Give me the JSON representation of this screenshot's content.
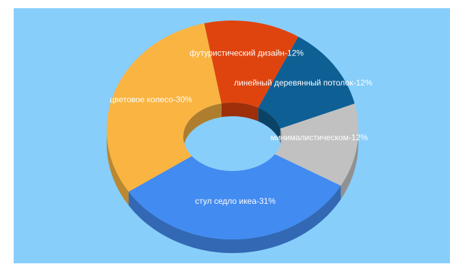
{
  "chart_data": {
    "type": "pie3d",
    "value_labels": [
      "футуристический дизайн-12%",
      "линейный деревянный потолок-12%",
      "минималистическом-12%",
      "стул седло икеа-31%",
      "цветовое колесо-30%"
    ],
    "values": [
      12,
      12,
      12,
      31,
      30
    ],
    "colors": [
      "#e0440e",
      "#0e5f94",
      "#c1c1c1",
      "#428bf0",
      "#f9b441"
    ],
    "background": "#87cefa"
  }
}
